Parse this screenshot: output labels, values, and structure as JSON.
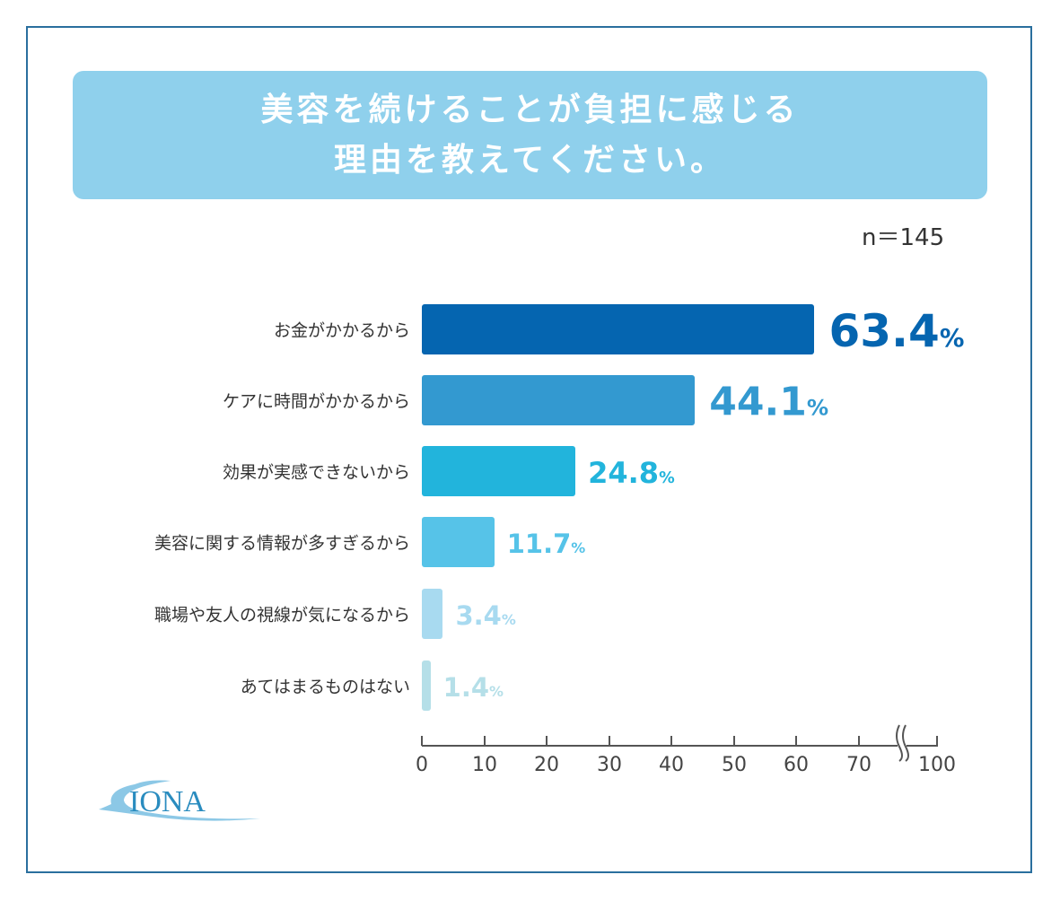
{
  "title_lines": [
    "美容を続けることが負担に感じる",
    "理由を教えてください。"
  ],
  "sample_size": "n＝145",
  "logo_text": "IONA",
  "chart_data": {
    "type": "bar",
    "orientation": "horizontal",
    "title": "美容を続けることが負担に感じる理由を教えてください。",
    "categories": [
      "お金がかかるから",
      "ケアに時間がかかるから",
      "効果が実感できないから",
      "美容に関する情報が多すぎるから",
      "職場や友人の視線が気になるから",
      "あてはまるものはない"
    ],
    "values": [
      63.4,
      44.1,
      24.8,
      11.7,
      3.4,
      1.4
    ],
    "value_labels": [
      "63.4",
      "44.1",
      "24.8",
      "11.7",
      "3.4",
      "1.4"
    ],
    "unit": "%",
    "colors": [
      "#0565b0",
      "#3399d0",
      "#22b4dc",
      "#56c3e8",
      "#a8daf0",
      "#b5dfe8"
    ],
    "xlim": [
      0,
      100
    ],
    "xticks": [
      "0",
      "10",
      "20",
      "30",
      "40",
      "50",
      "60",
      "70",
      "100"
    ],
    "axis_break": "between 70 and 100",
    "grid": false
  }
}
